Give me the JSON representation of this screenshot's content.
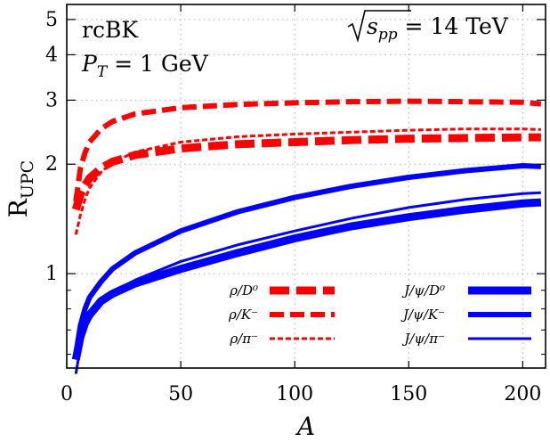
{
  "chart_data": {
    "type": "line",
    "x_axis": {
      "label": "A",
      "lim": [
        0,
        210
      ],
      "ticks": [
        0,
        50,
        100,
        150,
        200
      ]
    },
    "y_axis": {
      "label_main": "R",
      "label_sub": "UPC",
      "scale": "log",
      "lim": [
        0.55,
        5.5
      ],
      "ticks": [
        1,
        2,
        3,
        4,
        5
      ]
    },
    "grid": true,
    "annotations": {
      "model": "rcBK",
      "pt_main": "P",
      "pt_sub": "T",
      "pt_value": " = 1 GeV",
      "energy_sub": "pp",
      "energy_value": " = 14 TeV"
    },
    "legend_position": "bottom-right",
    "series": [
      {
        "name": "ρ/D⁰",
        "color": "#ff0000",
        "style": "thick-dashed",
        "x": [
          4,
          6,
          8,
          10,
          15,
          20,
          30,
          50,
          75,
          100,
          125,
          150,
          175,
          200,
          208
        ],
        "y": [
          1.5,
          1.65,
          1.75,
          1.83,
          1.95,
          2.03,
          2.12,
          2.21,
          2.27,
          2.3,
          2.33,
          2.35,
          2.36,
          2.37,
          2.37
        ]
      },
      {
        "name": "ρ/K⁻",
        "color": "#ff0000",
        "style": "dashed",
        "x": [
          4,
          6,
          8,
          10,
          15,
          20,
          30,
          50,
          75,
          100,
          125,
          150,
          175,
          200,
          208
        ],
        "y": [
          1.58,
          1.95,
          2.15,
          2.3,
          2.5,
          2.62,
          2.75,
          2.86,
          2.92,
          2.95,
          2.97,
          2.98,
          2.97,
          2.96,
          2.93
        ]
      },
      {
        "name": "ρ/π⁻",
        "color": "#ff0000",
        "style": "thin-dashed",
        "x": [
          4,
          6,
          8,
          10,
          15,
          20,
          30,
          50,
          75,
          100,
          125,
          150,
          175,
          200,
          208
        ],
        "y": [
          1.28,
          1.45,
          1.6,
          1.72,
          1.9,
          2.02,
          2.16,
          2.3,
          2.38,
          2.42,
          2.45,
          2.48,
          2.5,
          2.5,
          2.49
        ]
      },
      {
        "name": "J/ψ/D⁰",
        "color": "#0000ff",
        "style": "thick-solid",
        "x": [
          4,
          6,
          8,
          10,
          15,
          20,
          30,
          50,
          75,
          100,
          125,
          150,
          175,
          200,
          208
        ],
        "y": [
          0.58,
          0.67,
          0.73,
          0.77,
          0.84,
          0.88,
          0.94,
          1.03,
          1.14,
          1.25,
          1.35,
          1.43,
          1.5,
          1.56,
          1.57
        ]
      },
      {
        "name": "J/ψ/K⁻",
        "color": "#0000ff",
        "style": "solid",
        "x": [
          4,
          6,
          8,
          10,
          15,
          20,
          30,
          50,
          75,
          100,
          125,
          150,
          175,
          200,
          208
        ],
        "y": [
          0.6,
          0.72,
          0.8,
          0.86,
          0.95,
          1.03,
          1.14,
          1.31,
          1.48,
          1.62,
          1.74,
          1.84,
          1.92,
          1.98,
          1.97
        ]
      },
      {
        "name": "J/ψ/π⁻",
        "color": "#0000ff",
        "style": "thin-solid",
        "x": [
          4,
          6,
          8,
          10,
          15,
          20,
          30,
          50,
          75,
          100,
          125,
          150,
          175,
          200,
          208
        ],
        "y": [
          0.53,
          0.63,
          0.7,
          0.75,
          0.83,
          0.89,
          0.96,
          1.08,
          1.2,
          1.31,
          1.42,
          1.52,
          1.6,
          1.66,
          1.67
        ]
      }
    ]
  }
}
